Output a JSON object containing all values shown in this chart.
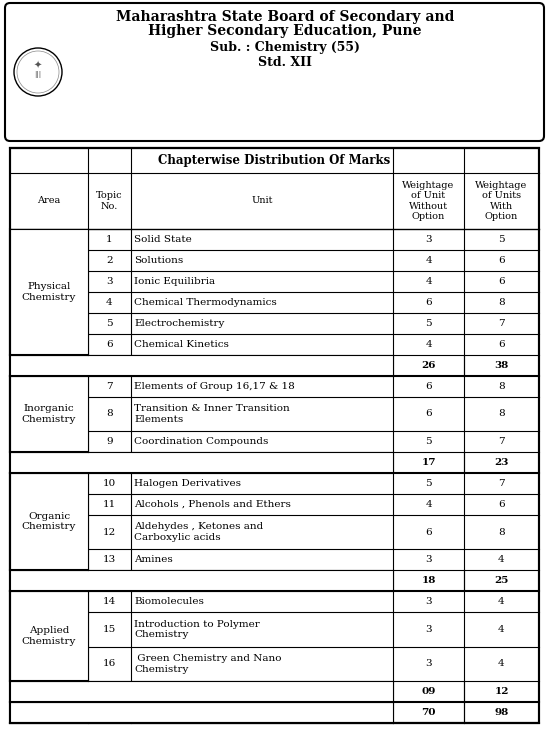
{
  "header_line1": "Maharashtra State Board of Secondary and",
  "header_line2": "Higher Secondary Education, Pune",
  "header_line3": "Sub. : Chemistry (55)",
  "header_line4": "Std. XII",
  "table_title": "Chapterwise Distribution Of Marks",
  "rows": [
    {
      "area": "Physical\nChemistry",
      "topic": "1",
      "unit": "Solid State",
      "wo": "3",
      "w": "5",
      "is_subtotal": false,
      "two_line": false
    },
    {
      "area": "",
      "topic": "2",
      "unit": "Solutions",
      "wo": "4",
      "w": "6",
      "is_subtotal": false,
      "two_line": false
    },
    {
      "area": "",
      "topic": "3",
      "unit": "Ionic Equilibria",
      "wo": "4",
      "w": "6",
      "is_subtotal": false,
      "two_line": false
    },
    {
      "area": "",
      "topic": "4",
      "unit": "Chemical Thermodynamics",
      "wo": "6",
      "w": "8",
      "is_subtotal": false,
      "two_line": false
    },
    {
      "area": "",
      "topic": "5",
      "unit": "Electrochemistry",
      "wo": "5",
      "w": "7",
      "is_subtotal": false,
      "two_line": false
    },
    {
      "area": "",
      "topic": "6",
      "unit": "Chemical Kinetics",
      "wo": "4",
      "w": "6",
      "is_subtotal": false,
      "two_line": false
    },
    {
      "area": "",
      "topic": "",
      "unit": "",
      "wo": "26",
      "w": "38",
      "is_subtotal": true,
      "two_line": false
    },
    {
      "area": "Inorganic\nChemistry",
      "topic": "7",
      "unit": "Elements of Group 16,17 & 18",
      "wo": "6",
      "w": "8",
      "is_subtotal": false,
      "two_line": false
    },
    {
      "area": "",
      "topic": "8",
      "unit": "Transition & Inner Transition\nElements",
      "wo": "6",
      "w": "8",
      "is_subtotal": false,
      "two_line": true
    },
    {
      "area": "",
      "topic": "9",
      "unit": "Coordination Compounds",
      "wo": "5",
      "w": "7",
      "is_subtotal": false,
      "two_line": false
    },
    {
      "area": "",
      "topic": "",
      "unit": "",
      "wo": "17",
      "w": "23",
      "is_subtotal": true,
      "two_line": false
    },
    {
      "area": "Organic\nChemistry",
      "topic": "10",
      "unit": "Halogen Derivatives",
      "wo": "5",
      "w": "7",
      "is_subtotal": false,
      "two_line": false
    },
    {
      "area": "",
      "topic": "11",
      "unit": "Alcohols , Phenols and Ethers",
      "wo": "4",
      "w": "6",
      "is_subtotal": false,
      "two_line": false
    },
    {
      "area": "",
      "topic": "12",
      "unit": "Aldehydes , Ketones and\nCarboxylic acids",
      "wo": "6",
      "w": "8",
      "is_subtotal": false,
      "two_line": true
    },
    {
      "area": "",
      "topic": "13",
      "unit": "Amines",
      "wo": "3",
      "w": "4",
      "is_subtotal": false,
      "two_line": false
    },
    {
      "area": "",
      "topic": "",
      "unit": "",
      "wo": "18",
      "w": "25",
      "is_subtotal": true,
      "two_line": false
    },
    {
      "area": "Applied\nChemistry",
      "topic": "14",
      "unit": "Biomolecules",
      "wo": "3",
      "w": "4",
      "is_subtotal": false,
      "two_line": false
    },
    {
      "area": "",
      "topic": "15",
      "unit": "Introduction to Polymer\nChemistry",
      "wo": "3",
      "w": "4",
      "is_subtotal": false,
      "two_line": true
    },
    {
      "area": "",
      "topic": "16",
      "unit": " Green Chemistry and Nano\nChemistry",
      "wo": "3",
      "w": "4",
      "is_subtotal": false,
      "two_line": true
    },
    {
      "area": "",
      "topic": "",
      "unit": "",
      "wo": "09",
      "w": "12",
      "is_subtotal": true,
      "two_line": false
    },
    {
      "area": "",
      "topic": "",
      "unit": "",
      "wo": "70",
      "w": "98",
      "is_subtotal": true,
      "two_line": false
    }
  ],
  "area_spans": [
    {
      "area": "Physical\nChemistry",
      "start": 0,
      "end": 5
    },
    {
      "area": "Inorganic\nChemistry",
      "start": 7,
      "end": 9
    },
    {
      "area": "Organic\nChemistry",
      "start": 11,
      "end": 14
    },
    {
      "area": "Applied\nChemistry",
      "start": 16,
      "end": 18
    }
  ],
  "subtotal_rows": [
    6,
    10,
    15,
    19,
    20
  ],
  "bg_color": "#ffffff"
}
